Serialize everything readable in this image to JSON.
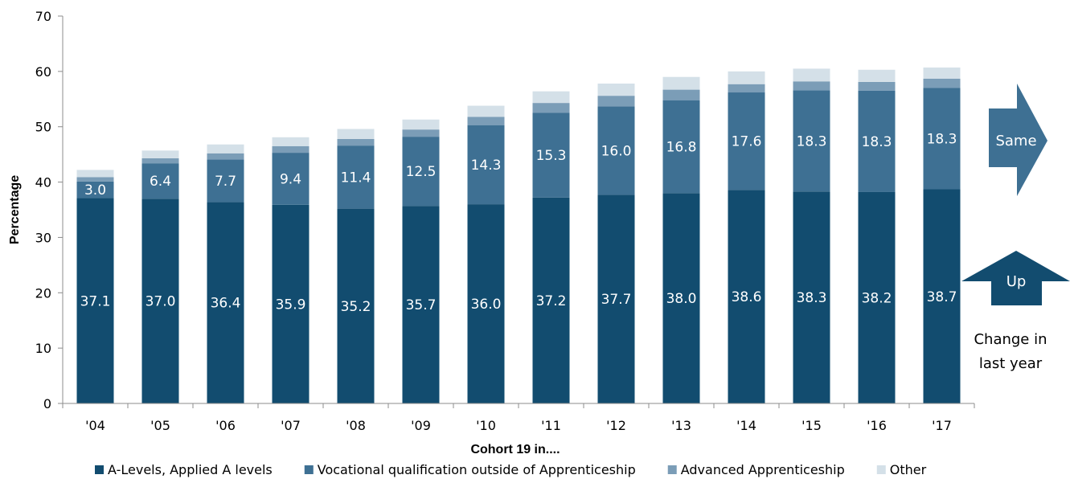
{
  "chart_data": {
    "type": "bar",
    "stacked": true,
    "xlabel": "Cohort 19 in....",
    "ylabel": "Percentage",
    "ylim": [
      0,
      70
    ],
    "yticks": [
      0,
      10,
      20,
      30,
      40,
      50,
      60,
      70
    ],
    "grid": false,
    "legend_position": "bottom",
    "categories": [
      "'04",
      "'05",
      "'06",
      "'07",
      "'08",
      "'09",
      "'10",
      "'11",
      "'12",
      "'13",
      "'14",
      "'15",
      "'16",
      "'17"
    ],
    "series": [
      {
        "name": "A-Levels, Applied A levels",
        "color": "#124c6f",
        "values": [
          37.1,
          37.0,
          36.4,
          35.9,
          35.2,
          35.7,
          36.0,
          37.2,
          37.7,
          38.0,
          38.6,
          38.3,
          38.2,
          38.7
        ],
        "labels": [
          "37.1",
          "37.0",
          "36.4",
          "35.9",
          "35.2",
          "35.7",
          "36.0",
          "37.2",
          "37.7",
          "38.0",
          "38.6",
          "38.3",
          "38.2",
          "38.7"
        ]
      },
      {
        "name": "Vocational qualification outside of Apprenticeship",
        "color": "#3e7093",
        "values": [
          3.0,
          6.4,
          7.7,
          9.4,
          11.4,
          12.5,
          14.3,
          15.3,
          16.0,
          16.8,
          17.6,
          18.3,
          18.3,
          18.3
        ],
        "labels": [
          "3.0",
          "6.4",
          "7.7",
          "9.4",
          "11.4",
          "12.5",
          "14.3",
          "15.3",
          "16.0",
          "16.8",
          "17.6",
          "18.3",
          "18.3",
          "18.3"
        ]
      },
      {
        "name": "Advanced Apprenticeship",
        "color": "#7b9db7",
        "values": [
          0.8,
          0.9,
          1.1,
          1.2,
          1.2,
          1.3,
          1.5,
          1.8,
          1.9,
          1.9,
          1.5,
          1.6,
          1.6,
          1.7
        ]
      },
      {
        "name": "Other",
        "color": "#d4e0e8",
        "values": [
          1.3,
          1.4,
          1.6,
          1.6,
          1.8,
          1.8,
          2.0,
          2.1,
          2.2,
          2.3,
          2.3,
          2.3,
          2.2,
          2.0
        ]
      }
    ],
    "annotations": {
      "same_arrow": {
        "label": "Same",
        "color": "#3e7093",
        "direction": "right",
        "refers_to": "Vocational qualification outside of Apprenticeship"
      },
      "up_arrow": {
        "label": "Up",
        "color": "#124c6f",
        "direction": "up",
        "refers_to": "A-Levels, Applied A levels"
      },
      "change_note": [
        "Change in",
        "last year"
      ]
    }
  }
}
